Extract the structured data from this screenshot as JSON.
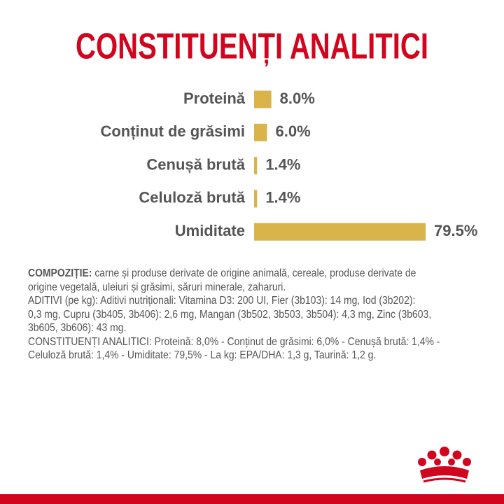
{
  "chart_data": {
    "type": "bar",
    "orientation": "horizontal",
    "title": "CONSTITUENȚI ANALITICI",
    "categories": [
      "Proteină",
      "Conținut de grăsimi",
      "Cenușă brută",
      "Celuloză brută",
      "Umiditate"
    ],
    "values": [
      8.0,
      6.0,
      1.4,
      1.4,
      79.5
    ],
    "value_labels": [
      "8.0%",
      "6.0%",
      "1.4%",
      "1.4%",
      "79.5%"
    ],
    "color": "#d9b44a"
  },
  "composition": {
    "heading": "COMPOZIȚIE:",
    "lines": [
      " carne și produse derivate de origine animală, cereale, produse derivate de",
      "origine vegetală, uleiuri și grăsimi, săruri minerale, zaharuri.",
      "ADITIVI (pe kg): Aditivi nutriționali: Vitamina D3: 200 UI, Fier (3b103): 14 mg, Iod (3b202):",
      "0,3 mg, Cupru (3b405, 3b406): 2,6 mg, Mangan (3b502, 3b503, 3b504): 4,3 mg, Zinc (3b603,",
      "3b605, 3b606): 43 mg.",
      "CONSTITUENȚI ANALITICI: Proteină: 8,0% - Conținut de grăsimi: 6,0% - Cenușă brută: 1,4% -",
      "Celuloză brută: 1,4% - Umiditate: 79,5% - La kg: EPA/DHA: 1,3 g, Taurină: 1,2 g."
    ]
  }
}
